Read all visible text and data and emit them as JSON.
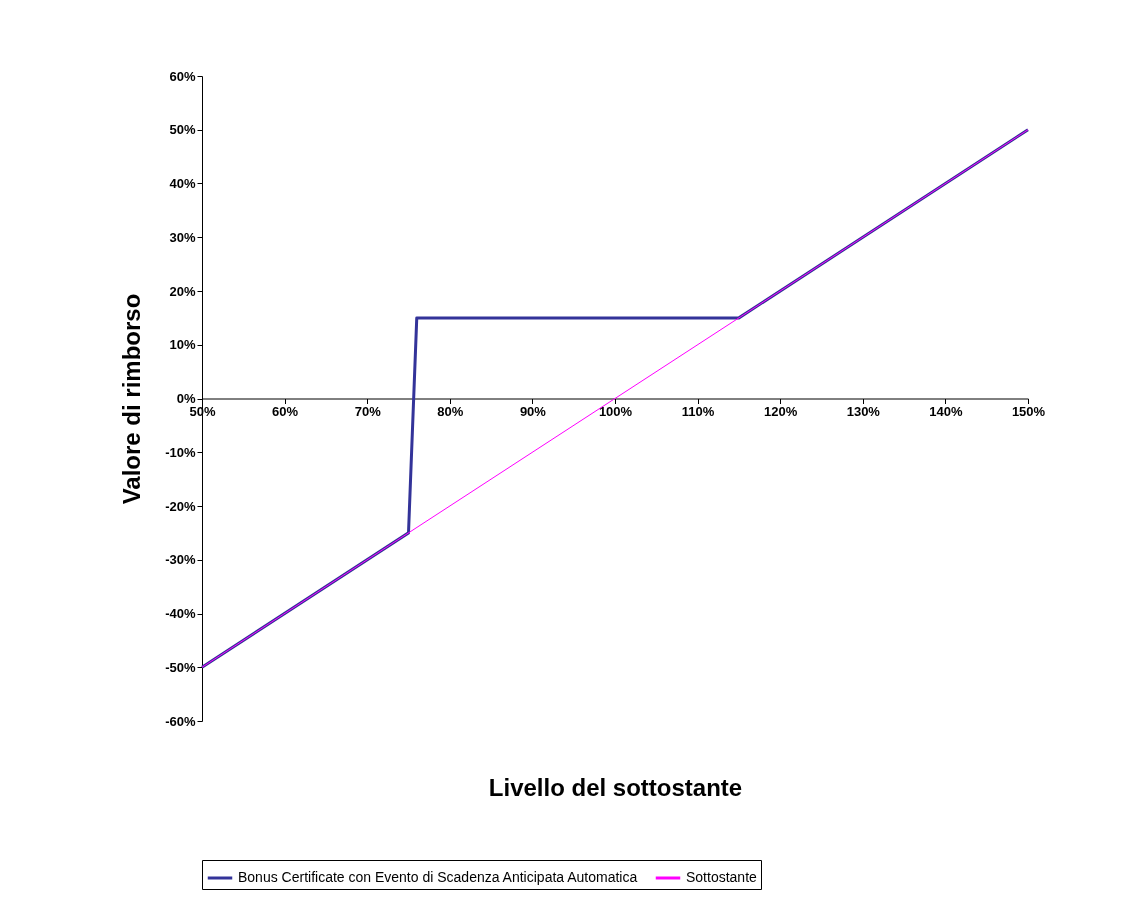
{
  "chart_data": {
    "type": "line",
    "xlabel": "Livello del sottostante",
    "ylabel": "Valore di rimborso",
    "series": [
      {
        "name": "Bonus Certificate con Evento di Scadenza Anticipata Automatica",
        "color": "#333399",
        "x": [
          50,
          75,
          76,
          115,
          150
        ],
        "values": [
          -50,
          -25,
          15,
          15,
          50
        ]
      },
      {
        "name": "Sottostante",
        "color": "#ff00ff",
        "x": [
          50,
          150
        ],
        "values": [
          -50,
          50
        ]
      }
    ],
    "xlim": [
      50,
      150
    ],
    "xticks": [
      {
        "value": 50,
        "label": "50%"
      },
      {
        "value": 60,
        "label": "60%"
      },
      {
        "value": 70,
        "label": "70%"
      },
      {
        "value": 80,
        "label": "80%"
      },
      {
        "value": 90,
        "label": "90%"
      },
      {
        "value": 100,
        "label": "100%"
      },
      {
        "value": 110,
        "label": "110%"
      },
      {
        "value": 120,
        "label": "120%"
      },
      {
        "value": 130,
        "label": "130%"
      },
      {
        "value": 140,
        "label": "140%"
      },
      {
        "value": 150,
        "label": "150%"
      }
    ],
    "ylim": [
      -60,
      60
    ],
    "yticks": [
      {
        "value": -60,
        "label": "-60%"
      },
      {
        "value": -50,
        "label": "-50%"
      },
      {
        "value": -40,
        "label": "-40%"
      },
      {
        "value": -30,
        "label": "-30%"
      },
      {
        "value": -20,
        "label": "-20%"
      },
      {
        "value": -10,
        "label": "-10%"
      },
      {
        "value": 0,
        "label": "0%"
      },
      {
        "value": 10,
        "label": "10%"
      },
      {
        "value": 20,
        "label": "20%"
      },
      {
        "value": 30,
        "label": "30%"
      },
      {
        "value": 40,
        "label": "40%"
      },
      {
        "value": 50,
        "label": "50%"
      },
      {
        "value": 60,
        "label": "60%"
      }
    ],
    "grid": false,
    "legend": "bottom",
    "line_style": "solid",
    "marker": "none"
  }
}
